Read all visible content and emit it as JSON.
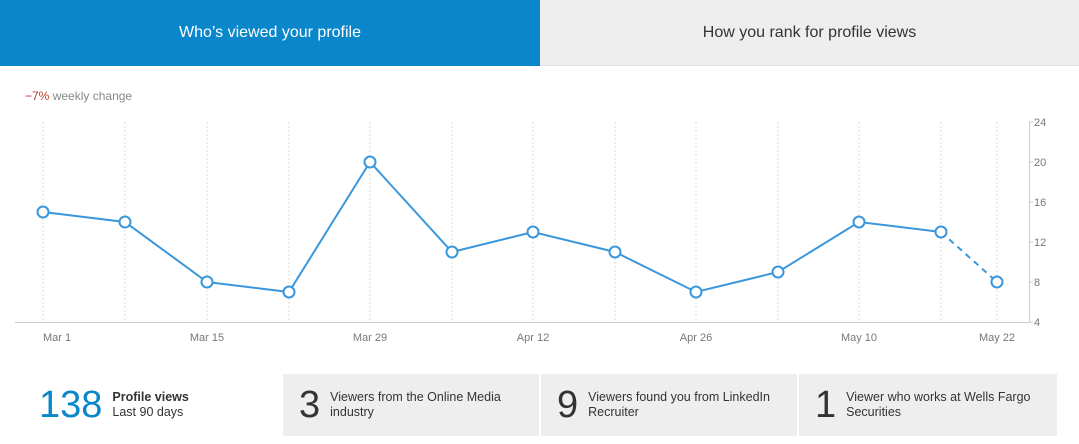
{
  "tabs": {
    "active": "Who’s viewed your profile",
    "inactive": "How you rank for profile views"
  },
  "weekly_change": {
    "value": "−7%",
    "label": "weekly change"
  },
  "chart_data": {
    "type": "line",
    "x": [
      "Mar 1",
      "Mar 8",
      "Mar 15",
      "Mar 22",
      "Mar 29",
      "Apr 5",
      "Apr 12",
      "Apr 19",
      "Apr 26",
      "May 3",
      "May 10",
      "May 17",
      "May 22"
    ],
    "x_tick_labels": [
      "Mar 1",
      "Mar 15",
      "Mar 29",
      "Apr 12",
      "Apr 26",
      "May 10",
      "May 22"
    ],
    "values": [
      15,
      14,
      8,
      7,
      20,
      11,
      13,
      11,
      7,
      9,
      14,
      13,
      8
    ],
    "projected_from_index": 11,
    "ylim": [
      4,
      24
    ],
    "y_ticks": [
      4,
      8,
      12,
      16,
      20,
      24
    ],
    "color": "#3a97db",
    "grid": "vertical-dotted"
  },
  "stats": [
    {
      "number": "138",
      "title": "Profile views",
      "subtitle": "Last 90 days"
    },
    {
      "number": "3",
      "text": "Viewers from the Online Media industry"
    },
    {
      "number": "9",
      "text": "Viewers found you from LinkedIn Recruiter"
    },
    {
      "number": "1",
      "text": "Viewer who works at Wells Fargo Securities"
    }
  ]
}
